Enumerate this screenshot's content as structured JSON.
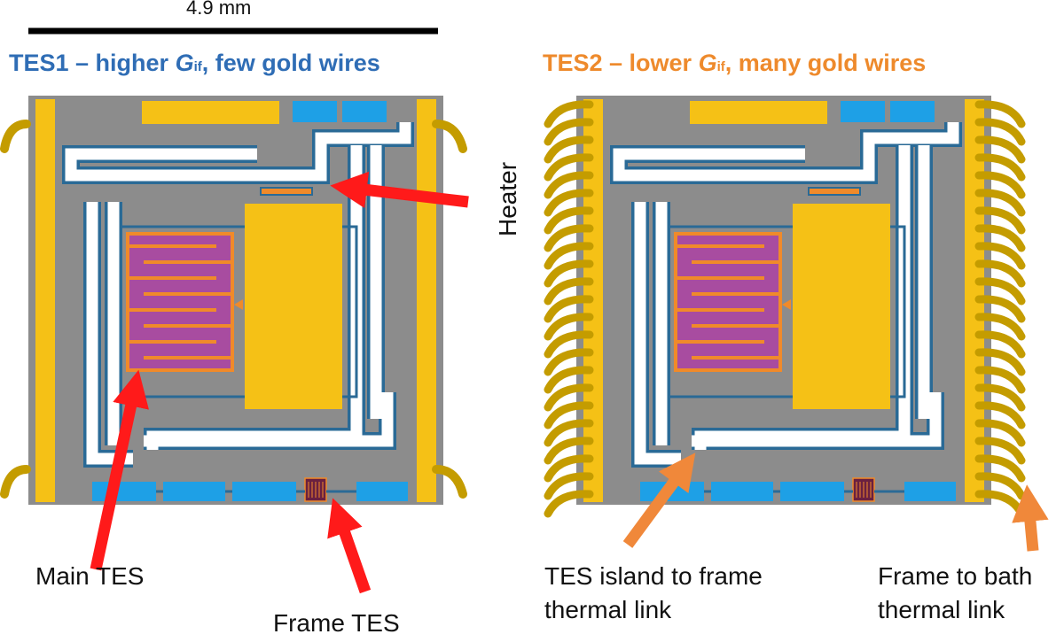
{
  "scale_bar": {
    "label": "4.9 mm"
  },
  "tes1": {
    "title_prefix": "TES1 – higher ",
    "g_symbol": "G",
    "g_subscript": "if",
    "title_suffix": ", few gold wires",
    "color": "#2f6db5"
  },
  "tes2": {
    "title_prefix": "TES2 – lower ",
    "g_symbol": "G",
    "g_subscript": "if",
    "title_suffix": ", many gold wires",
    "color": "#ee8a2c"
  },
  "annotations": {
    "heater": "Heater",
    "main_tes": "Main TES",
    "frame_tes": "Frame TES",
    "island_link_line1": "TES island to frame",
    "island_link_line2": "thermal link",
    "bath_link_line1": "Frame to bath",
    "bath_link_line2": "thermal link"
  },
  "colors": {
    "chip_gray": "#8c8c8c",
    "gold": "#f5c116",
    "gold_wire": "#c49c00",
    "pad_blue": "#1ea0e6",
    "trace_blue": "#2a6a96",
    "tes_purple": "#a84ca0",
    "tes_orange": "#f08a2a",
    "arrow_red": "#ff1a1a",
    "arrow_orange": "#f0883a"
  }
}
